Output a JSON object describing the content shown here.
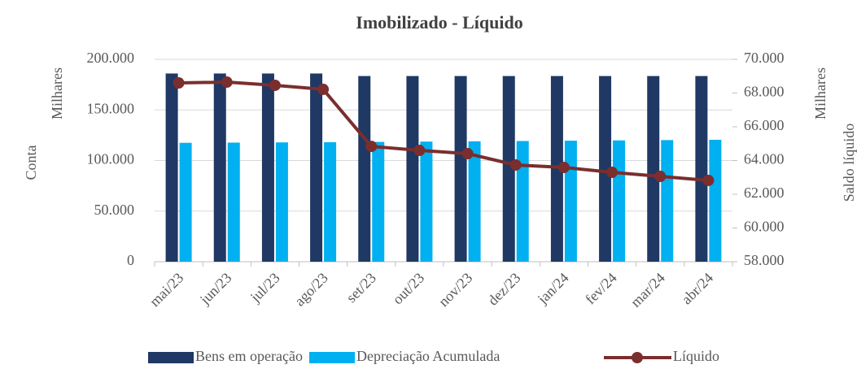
{
  "chart_data": {
    "type": "bar_line",
    "title": "Imobilizado - Líquido",
    "ylabel": "Conta",
    "y_unit": "Milhares",
    "y2label": "Saldo líquido",
    "y2_unit": "Milhares",
    "categories": [
      "mai/23",
      "jun/23",
      "jul/23",
      "ago/23",
      "set/23",
      "out/23",
      "nov/23",
      "dez/23",
      "jan/24",
      "fev/24",
      "mar/24",
      "abr/24"
    ],
    "series": [
      {
        "name": "Bens em operação",
        "type": "bar",
        "color": "#1f3864",
        "values": [
          186000,
          186000,
          186000,
          186000,
          183500,
          183500,
          183500,
          183500,
          183500,
          183500,
          183500,
          183500
        ]
      },
      {
        "name": "Depreciação Acumulada",
        "type": "bar",
        "color": "#00b0f0",
        "values": [
          117500,
          117700,
          117900,
          118100,
          118400,
          118700,
          119000,
          119300,
          119600,
          119900,
          120200,
          120500
        ]
      },
      {
        "name": "Líquido",
        "type": "line",
        "axis": "y2",
        "color": "#7b2e2e",
        "values": [
          68600,
          68650,
          68460,
          68220,
          64840,
          64600,
          64410,
          63735,
          63590,
          63300,
          63060,
          62820
        ]
      }
    ],
    "ylim": [
      0,
      200000
    ],
    "yticks": [
      0,
      {
        "value": 50000,
        "label": "50.000"
      },
      {
        "value": 100000,
        "label": "100.000"
      },
      {
        "value": 150000,
        "label": "150.000"
      },
      {
        "value": 200000,
        "label": "200.000"
      }
    ],
    "y2lim": [
      58000,
      70000
    ],
    "y2ticks": [
      {
        "value": 58000,
        "label": "58.000"
      },
      {
        "value": 60000,
        "label": "60.000"
      },
      {
        "value": 62000,
        "label": "62.000"
      },
      {
        "value": 64000,
        "label": "64.000"
      },
      {
        "value": 66000,
        "label": "66.000"
      },
      {
        "value": 68000,
        "label": "68.000"
      },
      {
        "value": 70000,
        "label": "70.000"
      }
    ],
    "grid": true,
    "legend": "bottom"
  }
}
